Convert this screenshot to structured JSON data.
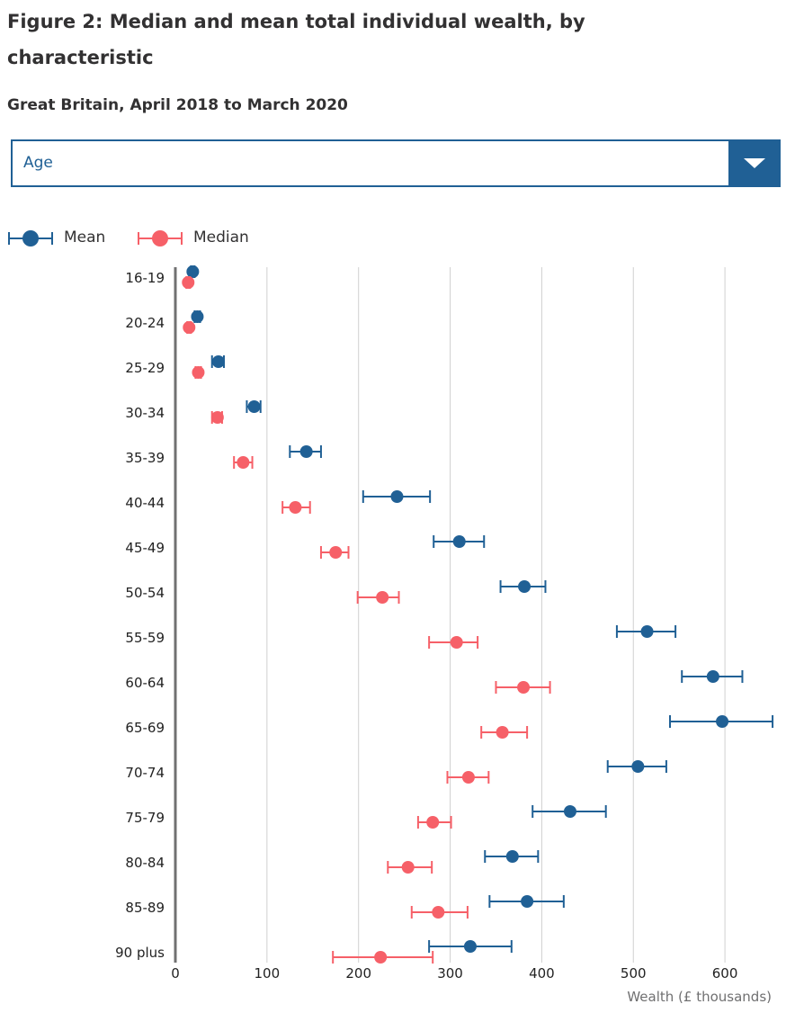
{
  "page": {
    "title": "Figure 2: Median and mean total individual wealth, by characteristic",
    "subtitle": "Great Britain, April 2018 to March 2020"
  },
  "selector": {
    "selected": "Age"
  },
  "colors": {
    "mean": "#206095",
    "median": "#f66068",
    "grid": "#d0d0d0",
    "axis": "#707071",
    "accent": "#206095"
  },
  "legend": {
    "mean_label": "Mean",
    "median_label": "Median"
  },
  "chart_data": {
    "type": "scatter",
    "subtype": "dot-plot-with-confidence-intervals",
    "categories": [
      "16-19",
      "20-24",
      "25-29",
      "30-34",
      "35-39",
      "40-44",
      "45-49",
      "50-54",
      "55-59",
      "60-64",
      "65-69",
      "70-74",
      "75-79",
      "80-84",
      "85-89",
      "90 plus"
    ],
    "series": [
      {
        "name": "Mean",
        "values": [
          19,
          24,
          47,
          86,
          143,
          242,
          310,
          381,
          515,
          587,
          597,
          505,
          431,
          368,
          384,
          322
        ],
        "ci_lower": [
          17,
          21,
          40,
          78,
          125,
          205,
          282,
          355,
          482,
          553,
          540,
          472,
          390,
          338,
          343,
          277
        ],
        "ci_upper": [
          21,
          27,
          53,
          93,
          159,
          278,
          337,
          404,
          546,
          619,
          652,
          536,
          470,
          396,
          424,
          367
        ]
      },
      {
        "name": "Median",
        "values": [
          14,
          15,
          25,
          46,
          74,
          131,
          175,
          226,
          307,
          380,
          357,
          320,
          281,
          254,
          287,
          224
        ],
        "ci_lower": [
          12,
          13,
          22,
          40,
          64,
          117,
          159,
          199,
          277,
          350,
          334,
          297,
          265,
          232,
          258,
          172
        ],
        "ci_upper": [
          16,
          17,
          28,
          51,
          84,
          147,
          189,
          244,
          330,
          409,
          384,
          342,
          301,
          280,
          319,
          281
        ]
      }
    ],
    "x_ticks": [
      0,
      100,
      200,
      300,
      400,
      500,
      600
    ],
    "xlim": [
      0,
      650
    ],
    "xlabel": "Wealth (£ thousands)",
    "ylabel": "",
    "grid": "vertical",
    "legend_position": "top-left"
  }
}
